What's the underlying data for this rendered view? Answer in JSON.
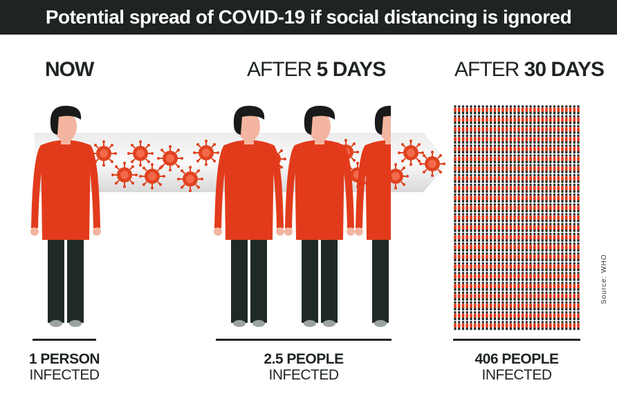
{
  "title": "Potential spread of COVID-19 if social distancing is ignored",
  "stages": [
    {
      "heading_normal": "NOW",
      "heading_bold": "",
      "count": "1 PERSON",
      "label": "INFECTED"
    },
    {
      "heading_normal": "AFTER ",
      "heading_bold": "5 DAYS",
      "count": "2.5 PEOPLE",
      "label": "INFECTED"
    },
    {
      "heading_normal": "AFTER ",
      "heading_bold": "30 DAYS",
      "count": "406 PEOPLE",
      "label": "INFECTED"
    }
  ],
  "source": "Source: WHO",
  "colors": {
    "title_bar": "#1e2421",
    "shirt": "#e23b1c",
    "pants": "#1f2a24",
    "skin": "#f3b5a0",
    "hair": "#1a1a1a",
    "virus": "#e0421f",
    "arrow": "#dcdcdc"
  },
  "icons": [
    "person-icon",
    "virus-icon",
    "arrow-icon"
  ]
}
